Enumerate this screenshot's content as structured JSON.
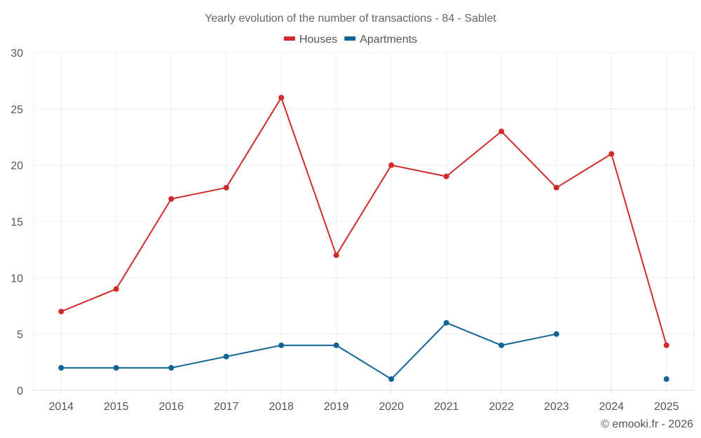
{
  "chart_data": {
    "type": "line",
    "title": "Yearly evolution of the number of transactions - 84 - Sablet",
    "categories": [
      "2014",
      "2015",
      "2016",
      "2017",
      "2018",
      "2019",
      "2020",
      "2021",
      "2022",
      "2023",
      "2024",
      "2025"
    ],
    "series": [
      {
        "name": "Houses",
        "color": "#d12a2a",
        "values": [
          7,
          9,
          17,
          18,
          26,
          12,
          20,
          19,
          23,
          18,
          21,
          4
        ]
      },
      {
        "name": "Apartments",
        "color": "#0f6496",
        "values": [
          2,
          2,
          2,
          3,
          4,
          4,
          1,
          6,
          4,
          5,
          null,
          1
        ]
      }
    ],
    "yticks": [
      0,
      5,
      10,
      15,
      20,
      25,
      30
    ],
    "ylim": [
      0,
      30
    ],
    "xlabel": "",
    "ylabel": "",
    "legend_position": "top-center",
    "grid": true
  },
  "credit": "© emooki.fr - 2026"
}
